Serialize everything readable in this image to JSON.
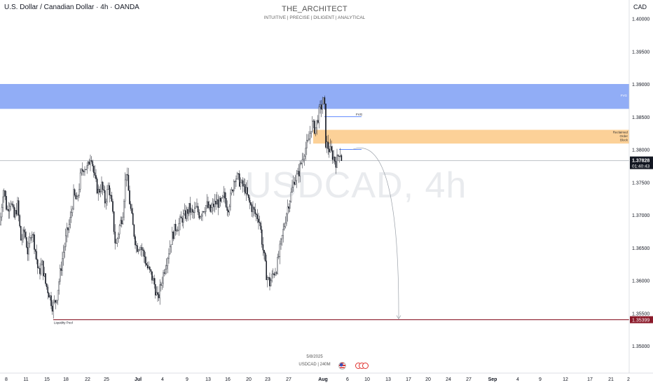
{
  "header": {
    "title": "U.S. Dollar / Canadian Dollar · 4h · OANDA",
    "brand": "THE_ARCHITECT",
    "tagline": "INTUITIVE | PRECISE | DILIGENT | ANALYTICAL",
    "currency": "CAD"
  },
  "watermark": "USDCAD, 4h",
  "footer": {
    "date": "5/8/2025",
    "symbol": "USDCAD | 240M"
  },
  "colors": {
    "bull": "#131722",
    "bear": "#131722",
    "fvg": "#7e9ff5",
    "order_block": "#fbc986",
    "liquidity": "#8b1a2a",
    "current_label": "#131722"
  },
  "chart_data": {
    "type": "candlestick",
    "timeframe": "4h",
    "symbol": "USDCAD",
    "ylim": [
      1.346,
      1.402
    ],
    "y_ticks": [
      "1.40000",
      "1.39500",
      "1.39000",
      "1.38500",
      "1.38000",
      "1.37500",
      "1.37000",
      "1.36500",
      "1.36000",
      "1.35500",
      "1.35000"
    ],
    "x_ticks": [
      "8",
      "11",
      "15",
      "18",
      "22",
      "25",
      "Jul",
      "4",
      "9",
      "13",
      "16",
      "20",
      "23",
      "27",
      "Aug",
      "6",
      "10",
      "13",
      "17",
      "20",
      "24",
      "27",
      "Sep",
      "4",
      "9",
      "12",
      "17",
      "21",
      "2"
    ],
    "price_path": [
      [
        0,
        1.3685
      ],
      [
        5,
        1.3745
      ],
      [
        10,
        1.3705
      ],
      [
        15,
        1.3725
      ],
      [
        20,
        1.3695
      ],
      [
        25,
        1.3715
      ],
      [
        30,
        1.366
      ],
      [
        35,
        1.3675
      ],
      [
        40,
        1.364
      ],
      [
        45,
        1.368
      ],
      [
        50,
        1.365
      ],
      [
        55,
        1.361
      ],
      [
        60,
        1.3625
      ],
      [
        65,
        1.3595
      ],
      [
        70,
        1.358
      ],
      [
        75,
        1.356
      ],
      [
        80,
        1.357
      ],
      [
        85,
        1.3605
      ],
      [
        90,
        1.364
      ],
      [
        95,
        1.367
      ],
      [
        100,
        1.369
      ],
      [
        105,
        1.373
      ],
      [
        110,
        1.372
      ],
      [
        115,
        1.376
      ],
      [
        120,
        1.3775
      ],
      [
        125,
        1.377
      ],
      [
        130,
        1.3795
      ],
      [
        135,
        1.3755
      ],
      [
        140,
        1.3735
      ],
      [
        145,
        1.3745
      ],
      [
        150,
        1.372
      ],
      [
        155,
        1.3745
      ],
      [
        160,
        1.371
      ],
      [
        165,
        1.365
      ],
      [
        170,
        1.368
      ],
      [
        175,
        1.37
      ],
      [
        180,
        1.377
      ],
      [
        185,
        1.372
      ],
      [
        190,
        1.368
      ],
      [
        195,
        1.365
      ],
      [
        200,
        1.3655
      ],
      [
        205,
        1.364
      ],
      [
        210,
        1.362
      ],
      [
        215,
        1.361
      ],
      [
        220,
        1.3595
      ],
      [
        225,
        1.357
      ],
      [
        230,
        1.3595
      ],
      [
        235,
        1.362
      ],
      [
        240,
        1.364
      ],
      [
        245,
        1.3665
      ],
      [
        250,
        1.368
      ],
      [
        255,
        1.3685
      ],
      [
        260,
        1.3695
      ],
      [
        265,
        1.37
      ],
      [
        270,
        1.371
      ],
      [
        275,
        1.37
      ],
      [
        280,
        1.371
      ],
      [
        285,
        1.37
      ],
      [
        290,
        1.371
      ],
      [
        295,
        1.3715
      ],
      [
        300,
        1.3705
      ],
      [
        305,
        1.3715
      ],
      [
        310,
        1.372
      ],
      [
        315,
        1.3715
      ],
      [
        320,
        1.373
      ],
      [
        325,
        1.371
      ],
      [
        330,
        1.373
      ],
      [
        335,
        1.376
      ],
      [
        340,
        1.3755
      ],
      [
        345,
        1.3745
      ],
      [
        350,
        1.374
      ],
      [
        355,
        1.372
      ],
      [
        360,
        1.371
      ],
      [
        365,
        1.37
      ],
      [
        370,
        1.3695
      ],
      [
        375,
        1.365
      ],
      [
        380,
        1.361
      ],
      [
        385,
        1.3595
      ],
      [
        390,
        1.361
      ],
      [
        395,
        1.362
      ],
      [
        400,
        1.365
      ],
      [
        405,
        1.368
      ],
      [
        410,
        1.371
      ],
      [
        415,
        1.373
      ],
      [
        420,
        1.3755
      ],
      [
        425,
        1.376
      ],
      [
        430,
        1.378
      ],
      [
        435,
        1.38
      ],
      [
        440,
        1.381
      ],
      [
        445,
        1.384
      ],
      [
        450,
        1.383
      ],
      [
        455,
        1.3855
      ],
      [
        460,
        1.387
      ],
      [
        463,
        1.3875
      ],
      [
        465,
        1.381
      ],
      [
        470,
        1.38
      ],
      [
        475,
        1.379
      ],
      [
        480,
        1.378
      ],
      [
        485,
        1.38
      ],
      [
        488,
        1.3783
      ]
    ],
    "current_price": "1.37828",
    "countdown": "01:40:43",
    "zones": [
      {
        "label": "FVG",
        "top": 1.39,
        "bottom": 1.3862
      },
      {
        "label": "Reclaimed Order Block",
        "top": 1.383,
        "bottom": 1.3809
      }
    ],
    "lines": [
      {
        "label": "FVG",
        "price": 1.385
      },
      {
        "label": "",
        "price": 1.38
      },
      {
        "label": "Liquidity Pool",
        "price": 1.35399
      }
    ],
    "liquidity_pool_price": "1.35399",
    "projection": {
      "from_price": 1.38,
      "to_price": 1.354
    }
  }
}
